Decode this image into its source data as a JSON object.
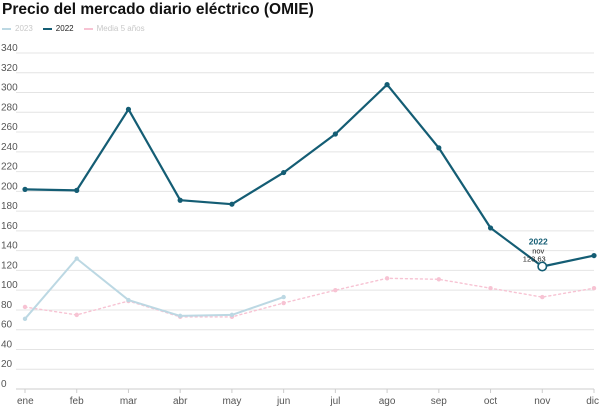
{
  "title": "Precio del mercado diario eléctrico (OMIE)",
  "colors": {
    "s2023": "#bcd8e3",
    "s2022": "#145d74",
    "media": "#f7c3d3",
    "grid": "#e4e4e4"
  },
  "chart_data": {
    "type": "line",
    "title": "Precio del mercado diario eléctrico (OMIE)",
    "xlabel": "",
    "ylabel": "",
    "categories": [
      "ene",
      "feb",
      "mar",
      "abr",
      "may",
      "jun",
      "jul",
      "ago",
      "sep",
      "oct",
      "nov",
      "dic"
    ],
    "ylim": [
      0,
      340
    ],
    "yticks": [
      0,
      20,
      40,
      60,
      80,
      100,
      120,
      140,
      160,
      180,
      200,
      220,
      240,
      260,
      280,
      300,
      320,
      340
    ],
    "grid": true,
    "legend_position": "top-left",
    "series": [
      {
        "name": "2023",
        "style": "solid",
        "values": [
          71,
          132,
          90,
          74,
          75,
          93,
          null,
          null,
          null,
          null,
          null,
          null
        ]
      },
      {
        "name": "2022",
        "style": "solid",
        "values": [
          202,
          201,
          283,
          191,
          187,
          219,
          258,
          308,
          244,
          163,
          124,
          135
        ]
      },
      {
        "name": "Media 5 años",
        "style": "dotted",
        "values": [
          83,
          75,
          89,
          73,
          73,
          87,
          100,
          112,
          111,
          102,
          93,
          102
        ]
      }
    ],
    "annotation": {
      "series": "2022",
      "category": "nov",
      "label": "nov",
      "value": "123,63"
    }
  }
}
